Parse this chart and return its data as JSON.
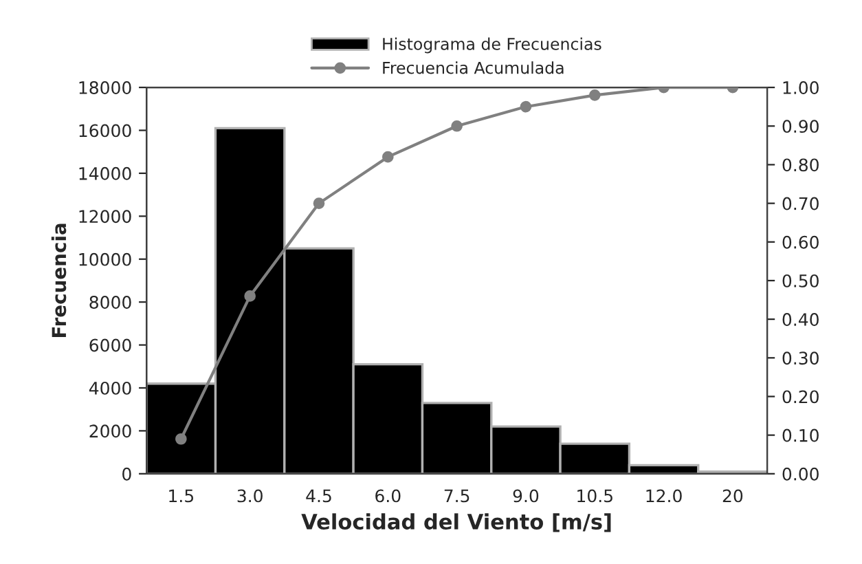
{
  "chart_data": {
    "type": "bar",
    "xlabel": "Velocidad del Viento [m/s]",
    "ylabel": "Frecuencia",
    "categories": [
      "1.5",
      "3.0",
      "4.5",
      "6.0",
      "7.5",
      "9.0",
      "10.5",
      "12.0",
      "20"
    ],
    "series": [
      {
        "name": "Histograma de Frecuencias",
        "color": "#000000",
        "values": [
          4200,
          16100,
          10500,
          5100,
          3300,
          2200,
          1400,
          400,
          100
        ]
      },
      {
        "name": "Frecuencia Acumulada",
        "type": "line",
        "axis": "y2",
        "color": "#808080",
        "values": [
          0.09,
          0.46,
          0.7,
          0.82,
          0.9,
          0.95,
          0.98,
          1.0,
          1.0
        ]
      }
    ],
    "ylim": [
      0,
      18000
    ],
    "yticks": [
      0,
      2000,
      4000,
      6000,
      8000,
      10000,
      12000,
      14000,
      16000,
      18000
    ],
    "y2lim": [
      0,
      1
    ],
    "y2ticks": [
      {
        "value": 0,
        "label": "0.00"
      },
      {
        "value": 0.1,
        "label": "0.10"
      },
      {
        "value": 0.2,
        "label": "0.20"
      },
      {
        "value": 0.3,
        "label": "0.30"
      },
      {
        "value": 0.4,
        "label": "0.40"
      },
      {
        "value": 0.5,
        "label": "0.50"
      },
      {
        "value": 0.6,
        "label": "0.60"
      },
      {
        "value": 0.7,
        "label": "0.70"
      },
      {
        "value": 0.8,
        "label": "0.80"
      },
      {
        "value": 0.9,
        "label": "0.90"
      },
      {
        "value": 1,
        "label": "1.00"
      }
    ],
    "marker": "circle",
    "legend": "top",
    "grid": false
  }
}
